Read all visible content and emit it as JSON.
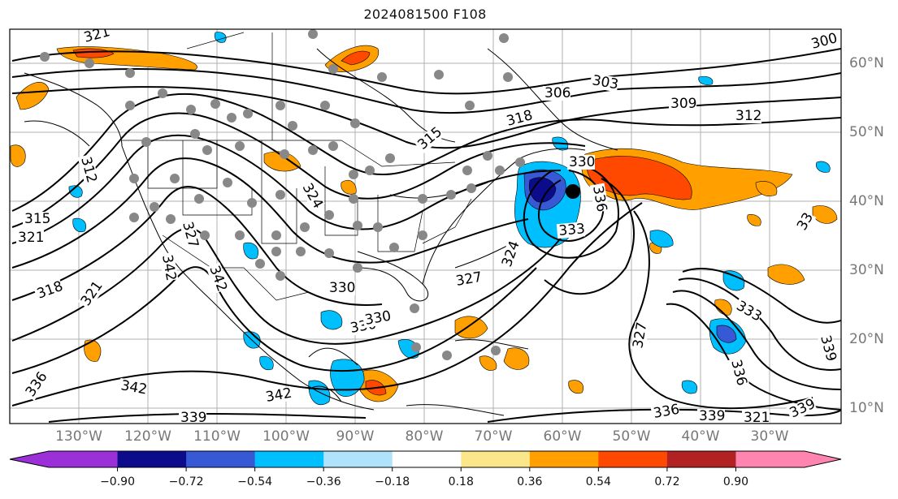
{
  "title": "2024081500 F108",
  "lon_labels": [
    "130°W",
    "120°W",
    "110°W",
    "100°W",
    "90°W",
    "80°W",
    "70°W",
    "60°W",
    "50°W",
    "40°W",
    "30°W"
  ],
  "lat_labels": [
    "60°N",
    "50°N",
    "40°N",
    "30°N",
    "20°N",
    "10°N"
  ],
  "contour_labels": [
    "321",
    "312",
    "315",
    "321",
    "318",
    "321",
    "336",
    "342",
    "339",
    "342",
    "342",
    "342",
    "330",
    "330",
    "318",
    "315",
    "303",
    "306",
    "309",
    "312",
    "300",
    "330",
    "336",
    "333",
    "324",
    "327",
    "327",
    "333",
    "336",
    "339",
    "324",
    "327",
    "330",
    "336",
    "339",
    "321",
    "339",
    "33"
  ],
  "colorbar": {
    "ticks": [
      "−0.90",
      "−0.72",
      "−0.54",
      "−0.36",
      "−0.18",
      "0.18",
      "0.36",
      "0.54",
      "0.72",
      "0.90"
    ],
    "colors": [
      "#9b30d9",
      "#0b0b8c",
      "#3759d6",
      "#00bfff",
      "#aee3fb",
      "#ffffff",
      "#fbe789",
      "#ffa000",
      "#ff4800",
      "#b22222",
      "#ff85b0"
    ],
    "under_color": "#9b30d9",
    "over_color": "#ff85b0"
  }
}
